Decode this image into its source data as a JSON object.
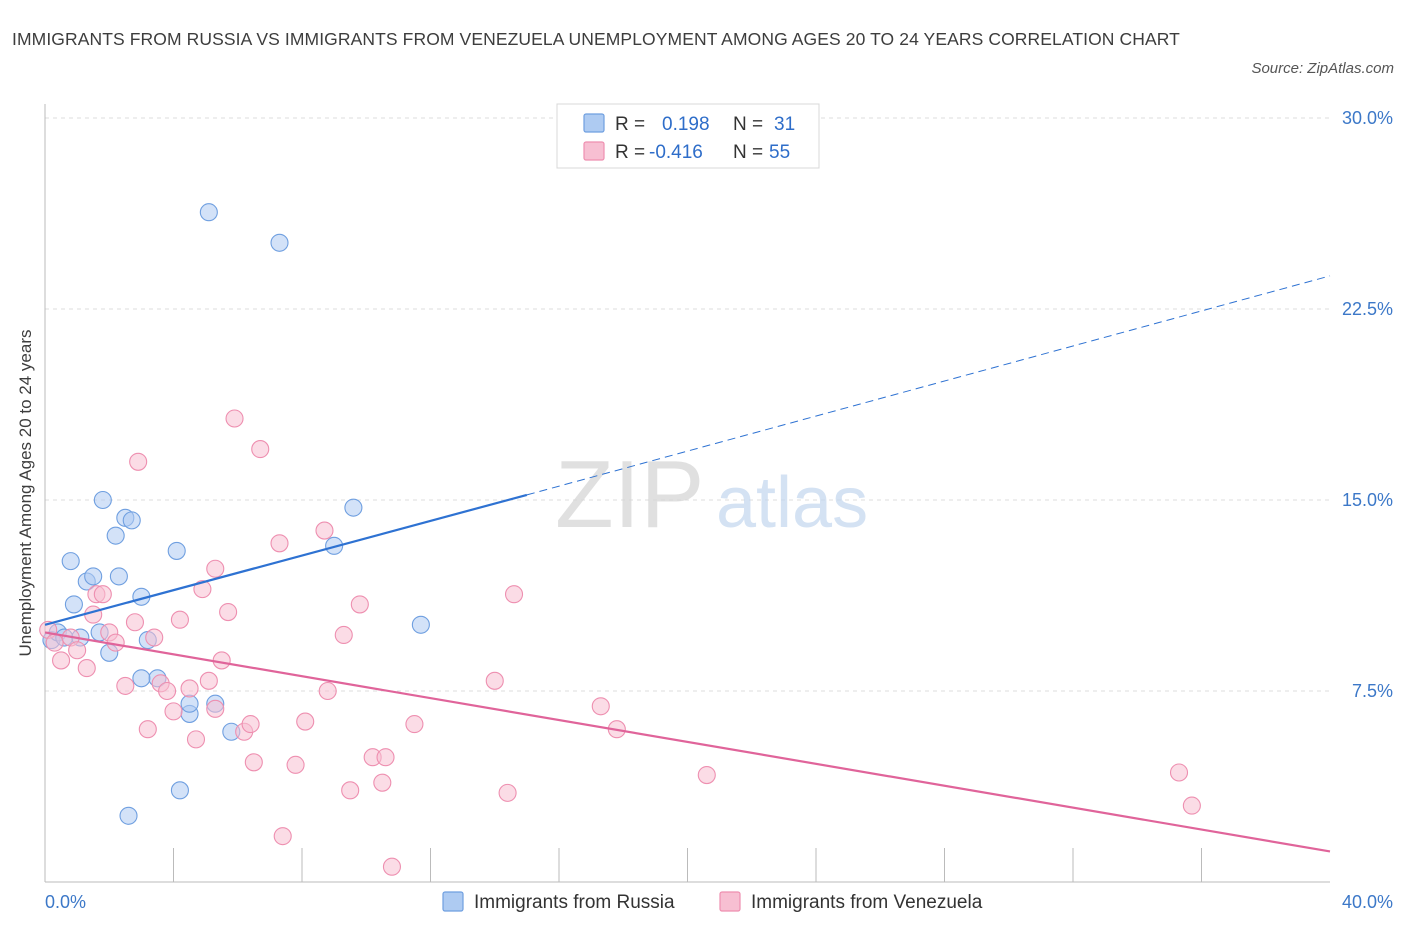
{
  "title": "IMMIGRANTS FROM RUSSIA VS IMMIGRANTS FROM VENEZUELA UNEMPLOYMENT AMONG AGES 20 TO 24 YEARS CORRELATION CHART",
  "source": "Source: ZipAtlas.com",
  "watermark": {
    "zip": "ZIP",
    "atlas": "atlas"
  },
  "legend_stats": {
    "russia": {
      "r_label": "R =",
      "r_value": "0.198",
      "n_label": "N =",
      "n_value": "31"
    },
    "venezuela": {
      "r_label": "R =",
      "r_value": "-0.416",
      "n_label": "N =",
      "n_value": "55"
    }
  },
  "colors": {
    "russia_fill": "#aecbf2",
    "russia_stroke": "#6f9fe0",
    "russia_line": "#2e72d2",
    "venezuela_fill": "#f7bfd2",
    "venezuela_stroke": "#ee8fb0",
    "venezuela_line": "#e0649a",
    "tick_label": "#3c78c8",
    "grid": "#dddddd"
  },
  "chart_data": {
    "type": "scatter",
    "xlabel": "",
    "ylabel": "Unemployment Among Ages 20 to 24 years",
    "xlim": [
      0,
      40
    ],
    "ylim": [
      0,
      30
    ],
    "x_tick_labels": [
      {
        "value": 0,
        "label": "0.0%"
      },
      {
        "value": 40,
        "label": "40.0%"
      }
    ],
    "y_tick_labels": [
      {
        "value": 7.5,
        "label": "7.5%"
      },
      {
        "value": 15,
        "label": "15.0%"
      },
      {
        "value": 22.5,
        "label": "22.5%"
      },
      {
        "value": 30,
        "label": "30.0%"
      }
    ],
    "grid": true,
    "legend_position": "bottom",
    "series": [
      {
        "name": "Immigrants from Russia",
        "points": [
          [
            0.2,
            9.5
          ],
          [
            0.4,
            9.8
          ],
          [
            0.6,
            9.6
          ],
          [
            0.8,
            12.6
          ],
          [
            0.9,
            10.9
          ],
          [
            1.1,
            9.6
          ],
          [
            1.3,
            11.8
          ],
          [
            1.5,
            12.0
          ],
          [
            1.7,
            9.8
          ],
          [
            1.8,
            15.0
          ],
          [
            2.0,
            9.0
          ],
          [
            2.2,
            13.6
          ],
          [
            2.3,
            12.0
          ],
          [
            2.5,
            14.3
          ],
          [
            2.7,
            14.2
          ],
          [
            3.0,
            11.2
          ],
          [
            3.2,
            9.5
          ],
          [
            3.5,
            8.0
          ],
          [
            3.0,
            8.0
          ],
          [
            4.1,
            13.0
          ],
          [
            4.2,
            3.6
          ],
          [
            4.5,
            6.6
          ],
          [
            4.5,
            7.0
          ],
          [
            5.1,
            26.3
          ],
          [
            5.3,
            7.0
          ],
          [
            5.8,
            5.9
          ],
          [
            7.3,
            25.1
          ],
          [
            9.0,
            13.2
          ],
          [
            9.6,
            14.7
          ],
          [
            2.6,
            2.6
          ],
          [
            11.7,
            10.1
          ]
        ]
      },
      {
        "name": "Immigrants from Venezuela",
        "points": [
          [
            0.1,
            9.9
          ],
          [
            0.3,
            9.4
          ],
          [
            0.5,
            8.7
          ],
          [
            0.8,
            9.6
          ],
          [
            1.0,
            9.1
          ],
          [
            1.3,
            8.4
          ],
          [
            1.5,
            10.5
          ],
          [
            1.6,
            11.3
          ],
          [
            1.8,
            11.3
          ],
          [
            2.0,
            9.8
          ],
          [
            2.2,
            9.4
          ],
          [
            2.5,
            7.7
          ],
          [
            2.8,
            10.2
          ],
          [
            2.9,
            16.5
          ],
          [
            3.2,
            6.0
          ],
          [
            3.4,
            9.6
          ],
          [
            3.6,
            7.8
          ],
          [
            3.8,
            7.5
          ],
          [
            4.0,
            6.7
          ],
          [
            4.2,
            10.3
          ],
          [
            4.5,
            7.6
          ],
          [
            4.7,
            5.6
          ],
          [
            4.9,
            11.5
          ],
          [
            5.1,
            7.9
          ],
          [
            5.3,
            12.3
          ],
          [
            5.5,
            8.7
          ],
          [
            5.7,
            10.6
          ],
          [
            5.9,
            18.2
          ],
          [
            6.2,
            5.9
          ],
          [
            6.4,
            6.2
          ],
          [
            6.5,
            4.7
          ],
          [
            6.7,
            17.0
          ],
          [
            7.3,
            13.3
          ],
          [
            7.4,
            1.8
          ],
          [
            7.8,
            4.6
          ],
          [
            8.1,
            6.3
          ],
          [
            8.7,
            13.8
          ],
          [
            8.8,
            7.5
          ],
          [
            9.3,
            9.7
          ],
          [
            9.5,
            3.6
          ],
          [
            9.8,
            10.9
          ],
          [
            10.2,
            4.9
          ],
          [
            10.5,
            3.9
          ],
          [
            10.6,
            4.9
          ],
          [
            10.8,
            0.6
          ],
          [
            11.5,
            6.2
          ],
          [
            14.0,
            7.9
          ],
          [
            14.4,
            3.5
          ],
          [
            14.6,
            11.3
          ],
          [
            17.3,
            6.9
          ],
          [
            17.8,
            6.0
          ],
          [
            20.6,
            4.2
          ],
          [
            35.3,
            4.3
          ],
          [
            35.7,
            3.0
          ],
          [
            5.3,
            6.8
          ]
        ]
      }
    ],
    "trend_lines": [
      {
        "series": "Immigrants from Russia",
        "solid": [
          [
            0,
            10.1
          ],
          [
            15,
            15.2
          ]
        ],
        "dashed": [
          [
            15,
            15.2
          ],
          [
            40,
            23.8
          ]
        ]
      },
      {
        "series": "Immigrants from Venezuela",
        "solid": [
          [
            0,
            9.8
          ],
          [
            40,
            1.2
          ]
        ]
      }
    ]
  }
}
